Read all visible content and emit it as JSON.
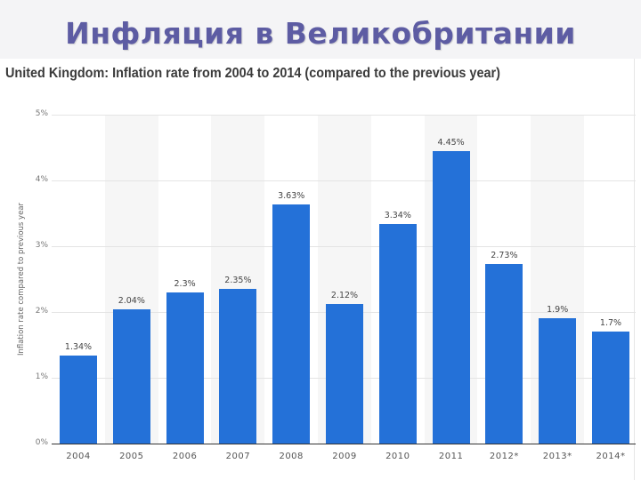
{
  "slide": {
    "title": "Инфляция в Великобритании"
  },
  "chart_data": {
    "type": "bar",
    "title": "United Kingdom: Inflation rate from 2004 to 2014 (compared to the previous year)",
    "xlabel": "",
    "ylabel": "Inflation rate compared to previous year",
    "categories": [
      "2004",
      "2005",
      "2006",
      "2007",
      "2008",
      "2009",
      "2010",
      "2011",
      "2012*",
      "2013*",
      "2014*"
    ],
    "values": [
      1.34,
      2.04,
      2.3,
      2.35,
      3.63,
      2.12,
      3.34,
      4.45,
      2.73,
      1.9,
      1.7
    ],
    "value_labels": [
      "1.34%",
      "2.04%",
      "2.3%",
      "2.35%",
      "3.63%",
      "2.12%",
      "3.34%",
      "4.45%",
      "2.73%",
      "1.9%",
      "1.7%"
    ],
    "yticks": [
      "0%",
      "1%",
      "2%",
      "3%",
      "4%",
      "5%"
    ],
    "ylim": [
      0,
      5
    ],
    "grid": true,
    "legend": "none",
    "bar_color": "#2471d8"
  }
}
